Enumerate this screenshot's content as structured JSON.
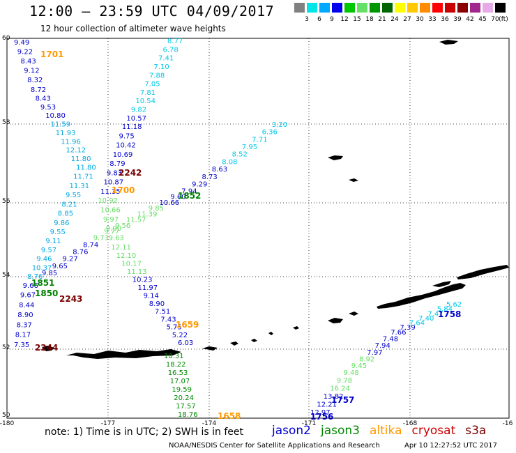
{
  "header": {
    "title": "12:00 – 23:59 UTC 04/09/2017",
    "subtitle": "12 hour collection of altimeter wave heights"
  },
  "color_scale": {
    "unit": "(ft)",
    "steps": [
      {
        "label": "",
        "color": "#808080"
      },
      {
        "label": "3",
        "color": "#00e5e5"
      },
      {
        "label": "6",
        "color": "#00a8ff"
      },
      {
        "label": "9",
        "color": "#0000ee"
      },
      {
        "label": "12",
        "color": "#00c800"
      },
      {
        "label": "15",
        "color": "#66e066"
      },
      {
        "label": "18",
        "color": "#009600"
      },
      {
        "label": "21",
        "color": "#006400"
      },
      {
        "label": "24",
        "color": "#ffff00"
      },
      {
        "label": "27",
        "color": "#ffc800"
      },
      {
        "label": "30",
        "color": "#ff8c00"
      },
      {
        "label": "33",
        "color": "#ff0000"
      },
      {
        "label": "36",
        "color": "#c80000"
      },
      {
        "label": "39",
        "color": "#8b0000"
      },
      {
        "label": "42",
        "color": "#a0288c"
      },
      {
        "label": "45",
        "color": "#e6aae6"
      },
      {
        "label": "70",
        "color": "#000000"
      }
    ]
  },
  "axes": {
    "lon_ticks": [
      "-180",
      "-177",
      "-174",
      "-171",
      "-168",
      "-16"
    ],
    "lat_ticks": [
      "60",
      "58",
      "56",
      "54",
      "52",
      "50"
    ]
  },
  "pass_labels": [
    {
      "text": "1701",
      "color": "#ff9900"
    },
    {
      "text": "2242",
      "color": "#7a0000"
    },
    {
      "text": "1700",
      "color": "#ff9900"
    },
    {
      "text": "1852",
      "color": "#008000"
    },
    {
      "text": "1851",
      "color": "#008000"
    },
    {
      "text": "1850",
      "color": "#008000"
    },
    {
      "text": "2243",
      "color": "#7a0000"
    },
    {
      "text": "1659",
      "color": "#ff9900"
    },
    {
      "text": "2244",
      "color": "#7a0000"
    },
    {
      "text": "1658",
      "color": "#ff9900"
    },
    {
      "text": "1758",
      "color": "#0000cc"
    },
    {
      "text": "1757",
      "color": "#0000cc"
    },
    {
      "text": "1756",
      "color": "#0000cc"
    }
  ],
  "tracks": [
    {
      "satellite": "altika",
      "values": [
        "9.49",
        "9.22",
        "8.43",
        "9.12",
        "8.32",
        "8.72",
        "8.43",
        "9.53",
        "10.80",
        "11.59",
        "11.93",
        "11.96",
        "12.12",
        "11.80",
        "11.80",
        "11.71",
        "11.31",
        "9.55",
        "8.21",
        "8.85",
        "9.86",
        "9.55",
        "9.11",
        "9.57",
        "9.46",
        "10.37",
        "8.76",
        "9.66",
        "9.67",
        "8.44",
        "8.90",
        "8.37",
        "8.17",
        "7.35"
      ]
    },
    {
      "satellite": "jason2",
      "values": [
        "8.77",
        "6.78",
        "7.41",
        "7.10",
        "7.88",
        "7.05",
        "7.81",
        "10.54",
        "9.82",
        "10.57",
        "11.18",
        "9.75",
        "10.42",
        "10.69",
        "8.79",
        "9.83",
        "10.87",
        "11.35",
        "10.92",
        "10.66",
        "9.97",
        "9.90",
        "9.63",
        "12.11",
        "12.10",
        "10.17",
        "11.13",
        "10.23",
        "11.97",
        "9.14",
        "8.90",
        "7.51",
        "7.43",
        "5.75",
        "5.22",
        "6.03"
      ]
    },
    {
      "satellite": "jason3",
      "values": [
        "18.31",
        "18.22",
        "16.53",
        "17.07",
        "19.59",
        "20.24",
        "17.57",
        "18.76"
      ]
    },
    {
      "satellite": "jason2",
      "values": [
        "3.20",
        "6.36",
        "7.71",
        "7.95",
        "8.52",
        "8.08",
        "8.63",
        "8.73",
        "9.29",
        "7.94",
        "9.60",
        "10.66",
        "9.85",
        "11.39",
        "11.57",
        "9.56",
        "9.77",
        "9.73",
        "8.74",
        "8.76",
        "9.27",
        "9.65",
        "9.85"
      ]
    },
    {
      "satellite": "jason2",
      "values": [
        "5.62",
        "5.84",
        "7.47",
        "7.40",
        "7.64",
        "7.39",
        "7.66",
        "7.48",
        "7.94",
        "7.97",
        "8.92",
        "9.45",
        "9.48",
        "9.78",
        "16.24",
        "13.82",
        "12.21",
        "12.97"
      ]
    }
  ],
  "note": "note:  1) Time is in UTC;  2) SWH is in feet",
  "satellites": [
    {
      "name": "jason2",
      "color": "#0000cc"
    },
    {
      "name": "jason3",
      "color": "#008800"
    },
    {
      "name": "altika",
      "color": "#ff9900"
    },
    {
      "name": "cryosat",
      "color": "#cc0000"
    },
    {
      "name": "s3a",
      "color": "#7a0000"
    }
  ],
  "footer": "NOAA/NESDIS Center for Satellite Applications and Research",
  "timestamp": "Apr 10 12:27:52 UTC 2017"
}
